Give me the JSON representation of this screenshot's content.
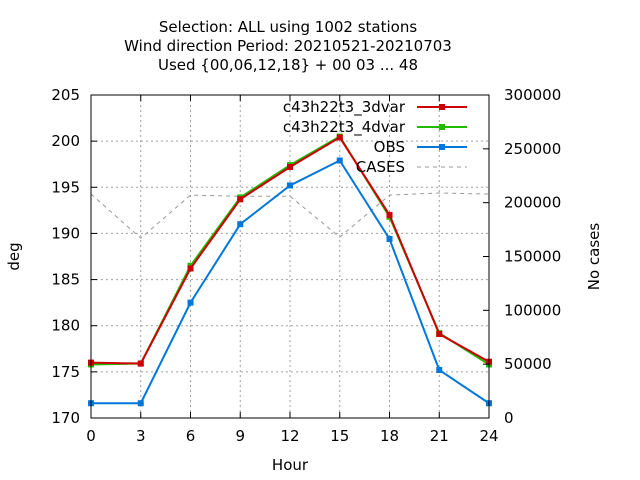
{
  "chart_data": {
    "type": "line",
    "title_lines": [
      "Selection: ALL using  1002 stations",
      "Wind direction   Period: 20210521-20210703",
      "Used {00,06,12,18} + 00 03 ... 48"
    ],
    "xlabel": "Hour",
    "ylabel": "deg",
    "y2label": "No cases",
    "x": [
      0,
      3,
      6,
      9,
      12,
      15,
      18,
      21,
      24
    ],
    "xlim": [
      0,
      24
    ],
    "ylim": [
      170,
      205
    ],
    "y2lim": [
      0,
      300000
    ],
    "x_ticks": [
      "0",
      "3",
      "6",
      "9",
      "12",
      "15",
      "18",
      "21",
      "24"
    ],
    "y_ticks": [
      "170",
      "175",
      "180",
      "185",
      "190",
      "195",
      "200",
      "205"
    ],
    "y2_ticks": [
      "0",
      "50000",
      "100000",
      "150000",
      "200000",
      "250000",
      "300000"
    ],
    "grid": true,
    "legend_position": "top-right",
    "series": [
      {
        "name": "c43h22t3_3dvar",
        "color": "#cc0000",
        "axis": "y",
        "values": [
          176.0,
          175.9,
          186.2,
          193.7,
          197.2,
          200.4,
          192.0,
          179.1,
          176.1
        ]
      },
      {
        "name": "c43h22t3_4dvar",
        "color": "#22bb00",
        "axis": "y",
        "values": [
          175.8,
          175.9,
          186.5,
          193.9,
          197.4,
          200.5,
          191.8,
          179.2,
          175.8
        ]
      },
      {
        "name": "OBS",
        "color": "#0077dd",
        "axis": "y",
        "values": [
          171.6,
          171.6,
          182.5,
          191.0,
          195.2,
          197.9,
          189.4,
          175.2,
          171.6
        ]
      },
      {
        "name": "CASES",
        "color": "#999999",
        "axis": "y2",
        "dashed": true,
        "values": [
          208000,
          167000,
          207000,
          206000,
          206000,
          168000,
          207000,
          209000,
          208000
        ]
      }
    ]
  }
}
